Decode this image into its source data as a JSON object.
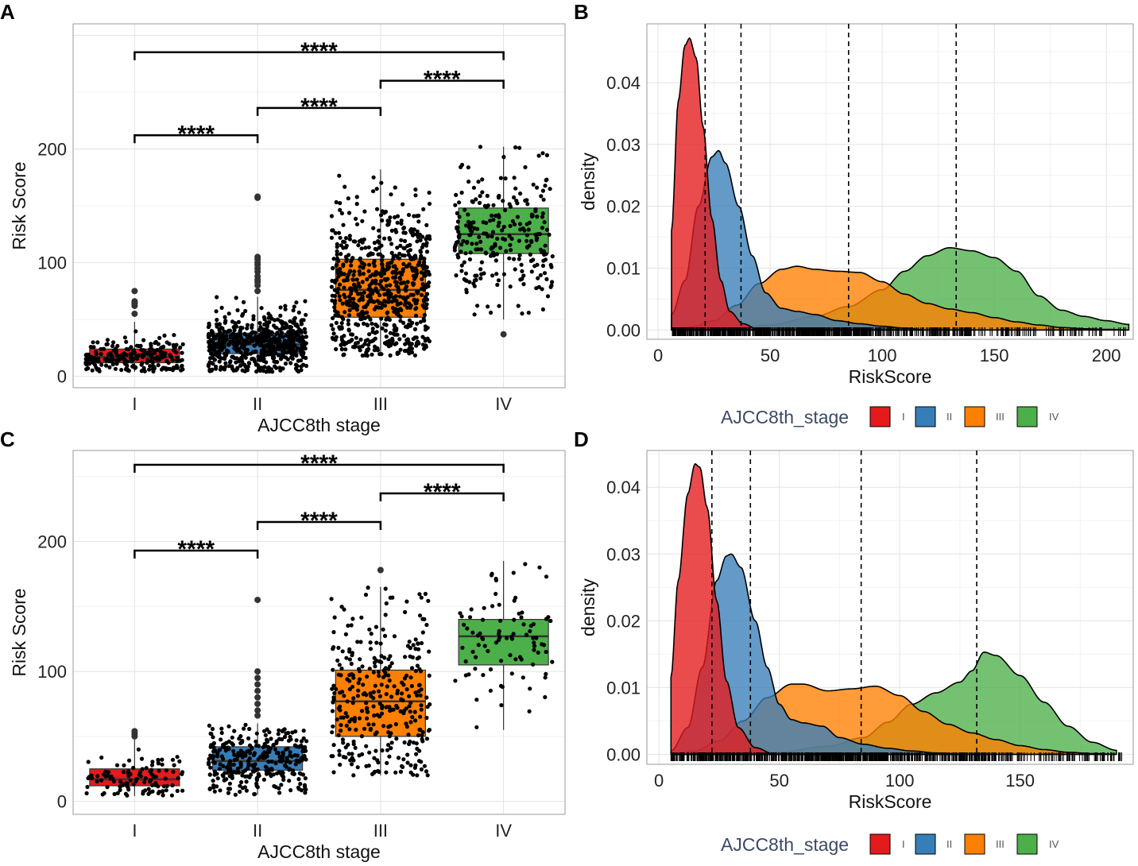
{
  "colors": {
    "I": "#e41a1c",
    "II": "#377eb8",
    "III": "#ff7f00",
    "IV": "#4daf4a",
    "legend_title": "#3a4a66"
  },
  "chart_data": [
    {
      "panel": "A",
      "type": "box",
      "xlabel": "AJCC8th stage",
      "ylabel": "Risk Score",
      "categories": [
        "I",
        "II",
        "III",
        "IV"
      ],
      "ylim": [
        -10,
        310
      ],
      "yticks": [
        0,
        100,
        200
      ],
      "boxes": [
        {
          "q1": 12,
          "median": 17,
          "q3": 24,
          "whisker_low": 4,
          "whisker_high": 48,
          "outliers": [
            55,
            62,
            64,
            65,
            66,
            75
          ]
        },
        {
          "q1": 20,
          "median": 28,
          "q3": 38,
          "whisker_low": 4,
          "whisker_high": 70,
          "outliers": [
            75,
            80,
            83,
            85,
            88,
            92,
            95,
            98,
            100,
            103,
            105,
            157,
            158
          ]
        },
        {
          "q1": 52,
          "median": 76,
          "q3": 103,
          "whisker_low": 18,
          "whisker_high": 182,
          "outliers": []
        },
        {
          "q1": 108,
          "median": 125,
          "q3": 148,
          "whisker_low": 50,
          "whisker_high": 202,
          "outliers": [
            37
          ]
        }
      ],
      "comparisons": [
        {
          "from": "I",
          "to": "II",
          "label": "****",
          "y": 212
        },
        {
          "from": "II",
          "to": "III",
          "label": "****",
          "y": 236
        },
        {
          "from": "III",
          "to": "IV",
          "label": "****",
          "y": 260
        },
        {
          "from": "I",
          "to": "IV",
          "label": "****",
          "y": 285
        }
      ]
    },
    {
      "panel": "B",
      "type": "density",
      "xlabel": "RiskScore",
      "ylabel": "density",
      "xlim": [
        -5,
        212
      ],
      "ylim": [
        -0.0015,
        0.0495
      ],
      "xticks": [
        0,
        50,
        100,
        150,
        200
      ],
      "yticks": [
        0.0,
        0.01,
        0.02,
        0.03,
        0.04
      ],
      "ytick_labels": [
        "0.00",
        "0.01",
        "0.02",
        "0.03",
        "0.04"
      ],
      "medians": [
        21,
        37,
        85,
        133
      ],
      "series": [
        {
          "name": "I",
          "x": [
            6,
            9,
            12,
            14,
            17,
            20,
            24,
            28,
            32,
            38,
            45
          ],
          "y": [
            0.016,
            0.037,
            0.046,
            0.0472,
            0.044,
            0.033,
            0.018,
            0.008,
            0.003,
            0.001,
            0.0
          ]
        },
        {
          "name": "II",
          "x": [
            6,
            12,
            18,
            24,
            27,
            30,
            36,
            42,
            48,
            55,
            62,
            70,
            80,
            90,
            100,
            110,
            120
          ],
          "y": [
            0.0025,
            0.008,
            0.02,
            0.028,
            0.029,
            0.027,
            0.02,
            0.012,
            0.006,
            0.0035,
            0.003,
            0.0025,
            0.0015,
            0.001,
            0.0006,
            0.0003,
            0.0
          ]
        },
        {
          "name": "III",
          "x": [
            6,
            15,
            25,
            35,
            45,
            55,
            62,
            70,
            80,
            90,
            100,
            110,
            120,
            130,
            140,
            150,
            160,
            170,
            180,
            190,
            200,
            210
          ],
          "y": [
            0.0,
            0.0005,
            0.0015,
            0.004,
            0.0075,
            0.0098,
            0.0103,
            0.0098,
            0.0095,
            0.0093,
            0.0078,
            0.0058,
            0.0043,
            0.0034,
            0.0028,
            0.002,
            0.0013,
            0.0008,
            0.0004,
            0.0002,
            0.0001,
            0.0
          ]
        },
        {
          "name": "IV",
          "x": [
            6,
            30,
            50,
            70,
            85,
            100,
            110,
            120,
            130,
            140,
            150,
            160,
            170,
            180,
            190,
            200,
            210
          ],
          "y": [
            0.0,
            0.0002,
            0.0008,
            0.0022,
            0.0038,
            0.0065,
            0.0095,
            0.012,
            0.0133,
            0.0128,
            0.0117,
            0.0095,
            0.0055,
            0.0032,
            0.0022,
            0.0015,
            0.0009
          ]
        }
      ]
    },
    {
      "panel": "C",
      "type": "box",
      "xlabel": "AJCC8th stage",
      "ylabel": "Risk Score",
      "categories": [
        "I",
        "II",
        "III",
        "IV"
      ],
      "ylim": [
        -10,
        270
      ],
      "yticks": [
        0,
        100,
        200
      ],
      "boxes": [
        {
          "q1": 12,
          "median": 17,
          "q3": 25,
          "whisker_low": 4,
          "whisker_high": 48,
          "outliers": [
            50,
            52,
            54
          ]
        },
        {
          "q1": 24,
          "median": 31,
          "q3": 42,
          "whisker_low": 5,
          "whisker_high": 60,
          "outliers": [
            66,
            70,
            75,
            80,
            85,
            90,
            95,
            100,
            155
          ]
        },
        {
          "q1": 50,
          "median": 77,
          "q3": 101,
          "whisker_low": 20,
          "whisker_high": 165,
          "outliers": [
            178
          ]
        },
        {
          "q1": 105,
          "median": 127,
          "q3": 140,
          "whisker_low": 55,
          "whisker_high": 185,
          "outliers": []
        }
      ],
      "comparisons": [
        {
          "from": "I",
          "to": "II",
          "label": "****",
          "y": 193
        },
        {
          "from": "II",
          "to": "III",
          "label": "****",
          "y": 215
        },
        {
          "from": "III",
          "to": "IV",
          "label": "****",
          "y": 237
        },
        {
          "from": "I",
          "to": "IV",
          "label": "****",
          "y": 259
        }
      ]
    },
    {
      "panel": "D",
      "type": "density",
      "xlabel": "RiskScore",
      "ylabel": "density",
      "xlim": [
        -5,
        197
      ],
      "ylim": [
        -0.0015,
        0.0455
      ],
      "xticks": [
        0,
        50,
        100,
        150
      ],
      "yticks": [
        0.0,
        0.01,
        0.02,
        0.03,
        0.04
      ],
      "ytick_labels": [
        "0.00",
        "0.01",
        "0.02",
        "0.03",
        "0.04"
      ],
      "medians": [
        22,
        38,
        84,
        132
      ],
      "series": [
        {
          "name": "I",
          "x": [
            5,
            8,
            12,
            15,
            17,
            20,
            24,
            28,
            33,
            40,
            48
          ],
          "y": [
            0.0115,
            0.026,
            0.039,
            0.0435,
            0.043,
            0.037,
            0.023,
            0.011,
            0.004,
            0.001,
            0.0
          ]
        },
        {
          "name": "II",
          "x": [
            5,
            12,
            18,
            24,
            28,
            30,
            34,
            40,
            45,
            50,
            55,
            60,
            68,
            75,
            85,
            95,
            105,
            115,
            125
          ],
          "y": [
            0.0005,
            0.004,
            0.013,
            0.026,
            0.0297,
            0.03,
            0.028,
            0.02,
            0.013,
            0.0075,
            0.0052,
            0.0047,
            0.0042,
            0.0025,
            0.0015,
            0.0009,
            0.0005,
            0.0002,
            0.0
          ]
        },
        {
          "name": "III",
          "x": [
            5,
            15,
            25,
            35,
            45,
            55,
            60,
            70,
            80,
            90,
            100,
            110,
            120,
            130,
            140,
            150,
            160,
            170,
            180,
            190
          ],
          "y": [
            0.0,
            0.0005,
            0.002,
            0.005,
            0.0085,
            0.0105,
            0.0105,
            0.0095,
            0.0098,
            0.0102,
            0.0088,
            0.0064,
            0.0045,
            0.0032,
            0.0022,
            0.0013,
            0.0007,
            0.0003,
            0.0001,
            0.0
          ]
        },
        {
          "name": "IV",
          "x": [
            5,
            30,
            50,
            70,
            85,
            95,
            105,
            115,
            125,
            130,
            135,
            140,
            150,
            160,
            170,
            180,
            190
          ],
          "y": [
            0.0,
            0.0001,
            0.0003,
            0.0012,
            0.0025,
            0.0048,
            0.0075,
            0.0092,
            0.0108,
            0.0125,
            0.0153,
            0.0148,
            0.0118,
            0.0078,
            0.0042,
            0.0018,
            0.0006
          ]
        }
      ]
    }
  ],
  "panels": {
    "A": {
      "letter": "A"
    },
    "B": {
      "letter": "B",
      "legend_title": "AJCC8th_stage",
      "legend_labels": [
        "I",
        "II",
        "III",
        "IV"
      ]
    },
    "C": {
      "letter": "C"
    },
    "D": {
      "letter": "D",
      "legend_title": "AJCC8th_stage",
      "legend_labels": [
        "I",
        "II",
        "III",
        "IV"
      ]
    }
  }
}
